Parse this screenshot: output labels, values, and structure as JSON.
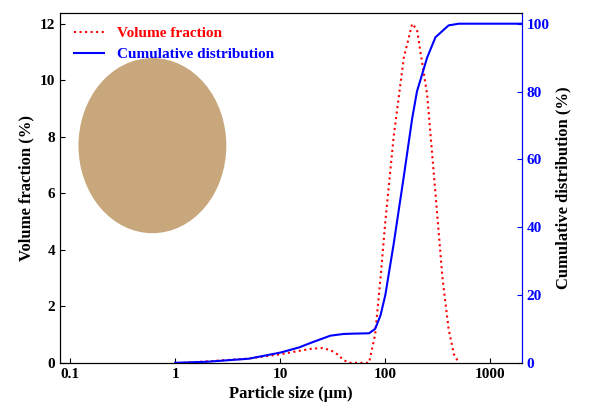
{
  "chart_data": {
    "type": "line",
    "x_label": "Particle size (μm)",
    "y_label": "Volume fraction (%)",
    "y2_label": "Cumulative distribution (%)",
    "log": "x",
    "grid": false,
    "legend": "upper left",
    "xlim": [
      0.08,
      2000
    ],
    "xticks": [
      0.1,
      1,
      10,
      100,
      1000
    ],
    "ylim": [
      0,
      12.4
    ],
    "yticks": [
      0,
      2,
      4,
      6,
      8,
      10,
      12
    ],
    "y2lim": [
      0,
      103.3
    ],
    "y2ticks": [
      0,
      20,
      40,
      60,
      80,
      100
    ],
    "series": [
      {
        "name": "Volume fraction",
        "color": "#ff0000",
        "line_style": "dotted",
        "x": [
          1.2,
          2,
          5,
          10,
          15,
          20,
          25,
          30,
          35,
          40,
          45,
          70,
          80,
          90,
          100,
          120,
          150,
          180,
          200,
          250,
          300,
          350,
          400,
          450,
          500
        ],
        "values": [
          0,
          0.05,
          0.15,
          0.3,
          0.42,
          0.5,
          0.52,
          0.45,
          0.3,
          0.1,
          0,
          0,
          1.0,
          3.0,
          5.0,
          8.0,
          10.8,
          12.0,
          11.8,
          9.5,
          6.0,
          3.0,
          1.2,
          0.3,
          0
        ]
      },
      {
        "name": "Cumulative distribution",
        "color": "#0000ff",
        "line_style": "solid",
        "axis": "y2",
        "x": [
          1,
          2,
          5,
          10,
          15,
          20,
          30,
          40,
          50,
          70,
          80,
          90,
          100,
          120,
          150,
          180,
          200,
          250,
          300,
          400,
          500,
          2000
        ],
        "values": [
          0,
          0.3,
          1.2,
          3,
          4.5,
          6,
          8,
          8.5,
          8.6,
          8.7,
          10,
          14,
          20,
          35,
          55,
          72,
          80,
          90,
          96,
          99.5,
          100,
          100
        ]
      }
    ]
  }
}
